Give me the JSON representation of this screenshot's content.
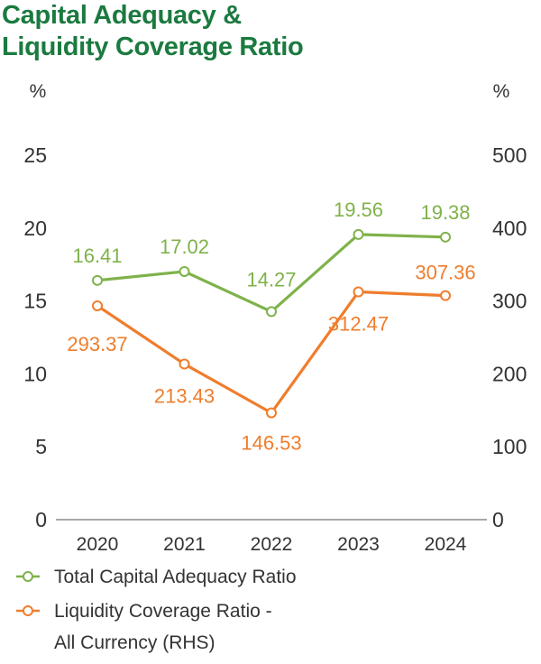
{
  "title_lines": [
    "Capital Adequacy &",
    "Liquidity Coverage Ratio"
  ],
  "chart_data": {
    "type": "line",
    "title": "Capital Adequacy & Liquidity Coverage Ratio",
    "categories": [
      "2020",
      "2021",
      "2022",
      "2023",
      "2024"
    ],
    "y_left": {
      "unit": "%",
      "ylim": [
        0,
        25
      ],
      "ticks": [
        "0",
        "5",
        "10",
        "15",
        "20",
        "25"
      ]
    },
    "y_right": {
      "unit": "%",
      "ylim": [
        0,
        500
      ],
      "ticks": [
        "0",
        "100",
        "200",
        "300",
        "400",
        "500"
      ]
    },
    "grid": false,
    "legend_position": "bottom-left",
    "series": [
      {
        "name": "Total Capital Adequacy Ratio",
        "axis": "left",
        "color": "#7fb24a",
        "values": [
          16.41,
          17.02,
          14.27,
          19.56,
          19.38
        ],
        "labels": [
          "16.41",
          "17.02",
          "14.27",
          "19.56",
          "19.38"
        ]
      },
      {
        "name": "Liquidity Coverage Ratio - All Currency (RHS)",
        "axis": "right",
        "color": "#ef7d2d",
        "values": [
          293.37,
          213.43,
          146.53,
          312.47,
          307.36
        ],
        "labels": [
          "293.37",
          "213.43",
          "146.53",
          "312.47",
          "307.36"
        ]
      }
    ],
    "legend_lines": [
      [
        "Total Capital Adequacy Ratio"
      ],
      [
        "Liquidity Coverage Ratio -",
        "All Currency (RHS)"
      ]
    ]
  }
}
